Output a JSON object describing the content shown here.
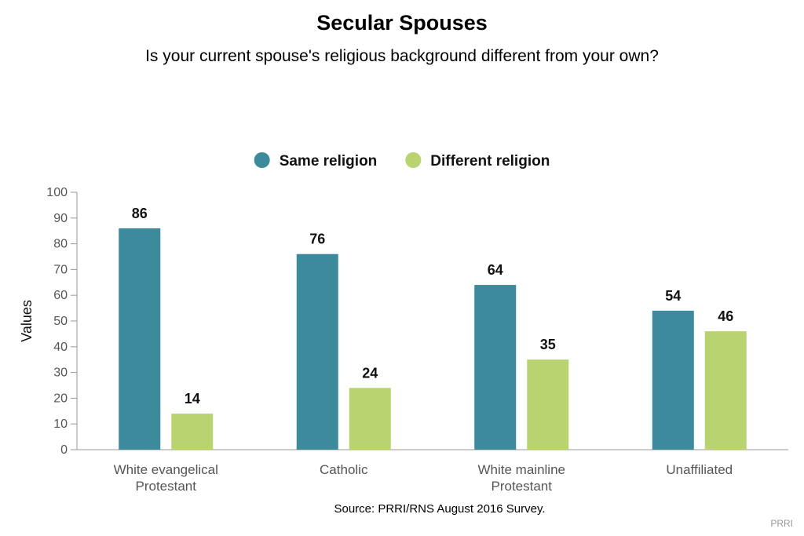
{
  "chart_data": {
    "type": "bar",
    "title": "Secular Spouses",
    "subtitle": "Is your current spouse's religious background different from your own?",
    "ylabel": "Values",
    "xlabel": "",
    "ylim": [
      0,
      100
    ],
    "yticks": [
      0,
      10,
      20,
      30,
      40,
      50,
      60,
      70,
      80,
      90,
      100
    ],
    "grid": false,
    "legend_position": "top-center",
    "categories": [
      [
        "White evangelical",
        "Protestant"
      ],
      [
        "Catholic"
      ],
      [
        "White mainline",
        "Protestant"
      ],
      [
        "Unaffiliated"
      ]
    ],
    "series": [
      {
        "name": "Same religion",
        "color": "#3d8a9c",
        "values": [
          86,
          76,
          64,
          54
        ]
      },
      {
        "name": "Different religion",
        "color": "#b8d36f",
        "values": [
          14,
          24,
          35,
          46
        ]
      }
    ]
  },
  "footer": {
    "source": "Source: PRRI/RNS August 2016 Survey.",
    "watermark": "PRRI"
  }
}
